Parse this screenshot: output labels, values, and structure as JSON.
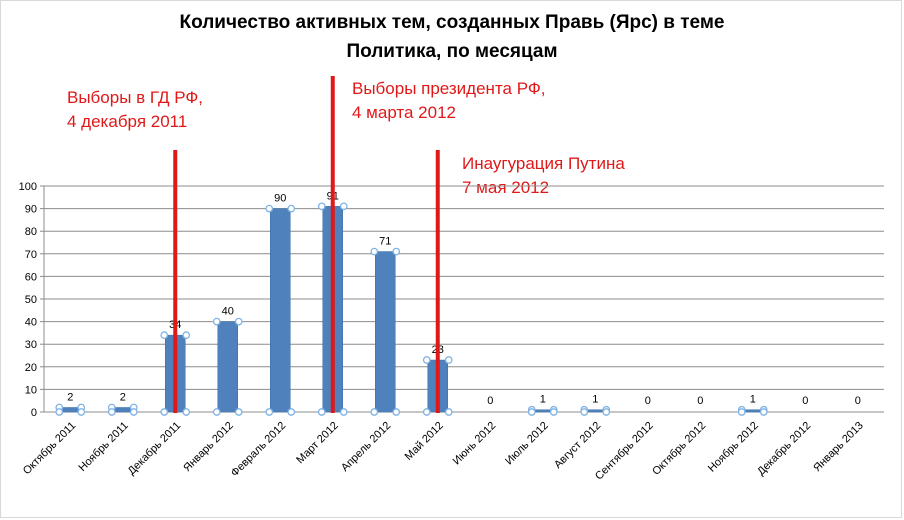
{
  "chart_data": {
    "type": "bar",
    "title_lines": [
      "Количество активных тем, созданных  Правь (Ярс) в теме",
      "Политика, по месяцам"
    ],
    "categories": [
      "Октябрь 2011",
      "Ноябрь 2011",
      "Декабрь 2011",
      "Январь 2012",
      "Февраль 2012",
      "Март 2012",
      "Апрель 2012",
      "Май 2012",
      "Июнь 2012",
      "Июль 2012",
      "Август 2012",
      "Сентябрь 2012",
      "Октябрь 2012",
      "Ноябрь 2012",
      "Декабрь 2012",
      "Январь 2013"
    ],
    "values": [
      2,
      2,
      34,
      40,
      90,
      91,
      71,
      23,
      0,
      1,
      1,
      0,
      0,
      1,
      0,
      0
    ],
    "ylim": [
      0,
      100
    ],
    "yticks": [
      0,
      10,
      20,
      30,
      40,
      50,
      60,
      70,
      80,
      90,
      100
    ],
    "grid": true,
    "bar_color": "#4f81bd",
    "marker_color": "#7fb2e5",
    "event_line_color": "#e01818",
    "annotations": [
      {
        "lines": [
          "Выборы в ГД РФ,",
          "4 декабря 2011"
        ],
        "category": "Декабрь 2011"
      },
      {
        "lines": [
          "Выборы президента РФ,",
          "4 марта 2012"
        ],
        "category": "Март 2012"
      },
      {
        "lines": [
          "Инаугурация Путина",
          "7 мая 2012"
        ],
        "category": "Май 2012"
      }
    ]
  }
}
